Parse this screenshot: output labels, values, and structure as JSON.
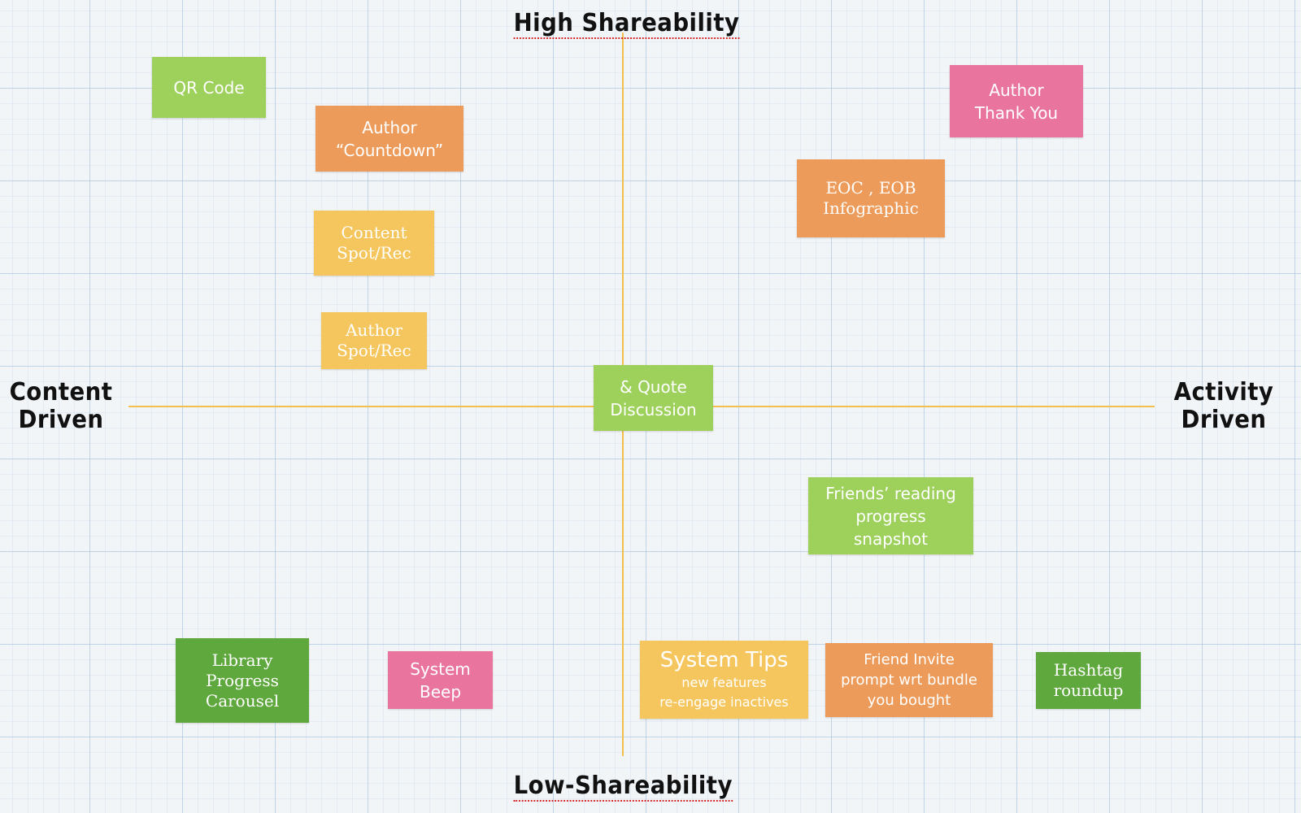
{
  "axes": {
    "top": "High Shareability",
    "bottom": "Low-Shareability",
    "left": [
      "Content",
      "Driven"
    ],
    "right": [
      "Activity",
      "Driven"
    ]
  },
  "notes": {
    "qr_code": [
      "QR Code"
    ],
    "author_countdown": [
      "Author",
      "“Countdown”"
    ],
    "content_spot_rec": [
      "Content",
      "Spot/Rec"
    ],
    "author_spot_rec": [
      "Author",
      "Spot/Rec"
    ],
    "quote_discussion": [
      "& Quote",
      "Discussion"
    ],
    "author_thank_you": [
      "Author",
      "Thank You"
    ],
    "eoc_eob_infographic": [
      "EOC , EOB",
      "Infographic"
    ],
    "friends_reading_progress": [
      "Friends’ reading",
      "progress",
      "snapshot"
    ],
    "library_progress_carousel": [
      "Library",
      "Progress",
      "Carousel"
    ],
    "system_beep": [
      "System",
      "Beep"
    ],
    "system_tips": {
      "title": "System Tips",
      "lines": [
        "new features",
        "re-engage inactives"
      ]
    },
    "friend_invite": [
      "Friend Invite",
      "prompt wrt bundle",
      "you bought"
    ],
    "hashtag_roundup": [
      "Hashtag",
      "roundup"
    ]
  },
  "colors": {
    "axis": "#f4c04d",
    "lime": "#9dd15b",
    "green": "#5fa83e",
    "orange": "#ec9b5a",
    "yellow": "#f6c65e",
    "pink": "#e9759f"
  }
}
